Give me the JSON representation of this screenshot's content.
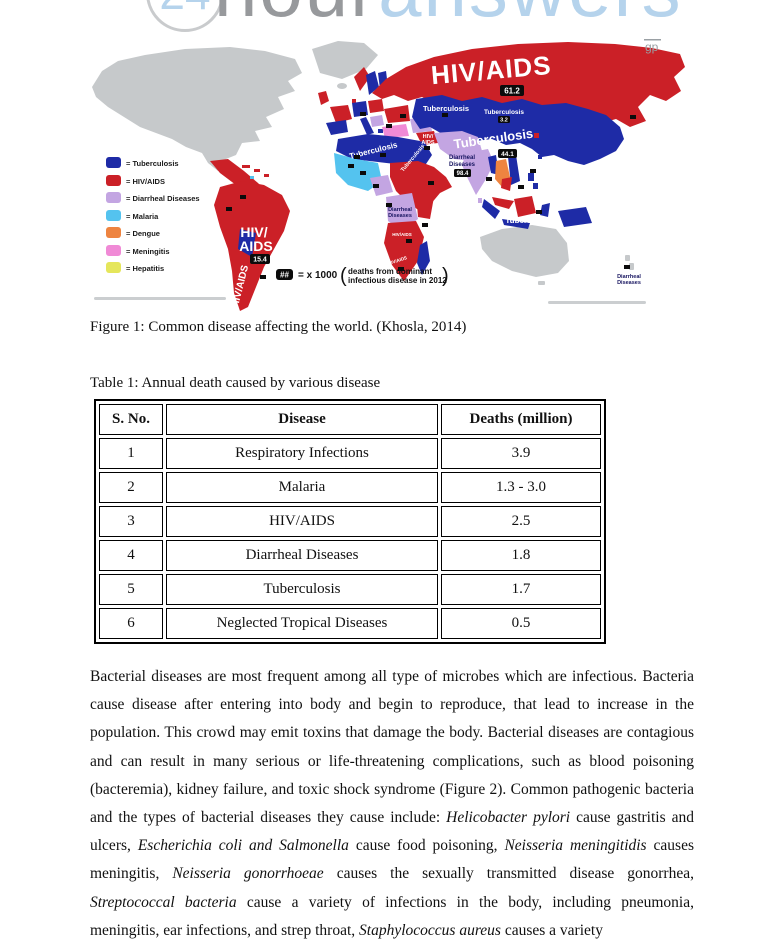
{
  "logo": {
    "number": "24",
    "hour": "hour",
    "answers": "answers"
  },
  "map": {
    "watermark": "gp",
    "legend": [
      {
        "label": "= Tuberculosis",
        "color": "#1e2ba6"
      },
      {
        "label": "= HIV/AIDS",
        "color": "#cb2027"
      },
      {
        "label": "= Diarrheal Diseases",
        "color": "#c3a5e2"
      },
      {
        "label": "= Malaria",
        "color": "#54c3ef"
      },
      {
        "label": "= Dengue",
        "color": "#ee8440"
      },
      {
        "label": "= Meningitis",
        "color": "#f08ad6"
      },
      {
        "label": "= Hepatitis",
        "color": "#e5e65b"
      }
    ],
    "labels": {
      "russia": "HIV/AIDS",
      "russia_badge": "61.2",
      "kazakhstan": "Tuberculosis",
      "mongolia": "Tuberculosis",
      "mongolia_badge": "3.2",
      "china": "Tuberculosis",
      "china_badge": "44.1",
      "north_africa": "Tuberculosis",
      "arabia": "Tuberculosis",
      "mideast_hiv_1": "HIV/",
      "mideast_hiv_2": "AIDS",
      "india_1": "Diarrheal",
      "india_2": "Diseases",
      "india_badge": "98.4",
      "congo_1": "Diarrheal",
      "congo_2": "Diseases",
      "south_america_1": "HIV/",
      "south_america_2": "AIDS",
      "south_america_badge": "15.4",
      "south_america_vertical": "HIV/AIDS",
      "africa_hiv_a": "HIV/AIDS",
      "africa_hiv_b": "HIV/AIDS",
      "indonesia": "Tuberculosis",
      "nz_1": "Diarrheal",
      "nz_2": "Diseases"
    },
    "annotation": {
      "badge": "##",
      "formula": "= x 1000",
      "line1": "deaths from dominant",
      "line2": "infectious disease in 2012"
    }
  },
  "figure_caption": "Figure 1: Common disease affecting the world. (Khosla, 2014)",
  "table_title": "Table 1: Annual death caused by various disease",
  "table": {
    "headers": [
      "S. No.",
      "Disease",
      "Deaths (million)"
    ],
    "rows": [
      [
        "1",
        "Respiratory Infections",
        "3.9"
      ],
      [
        "2",
        "Malaria",
        "1.3 - 3.0"
      ],
      [
        "3",
        "HIV/AIDS",
        "2.5"
      ],
      [
        "4",
        "Diarrheal Diseases",
        "1.8"
      ],
      [
        "5",
        "Tuberculosis",
        "1.7"
      ],
      [
        "6",
        "Neglected Tropical Diseases",
        "0.5"
      ]
    ]
  },
  "paragraph": {
    "segments": [
      {
        "text": "Bacterial diseases are most frequent among all type of microbes which are infectious. Bacteria cause disease after entering into body and begin to reproduce, that lead to increase in the population. This crowd may emit toxins that damage the body. Bacterial diseases are contagious and can result in many serious or life-threatening complications, such as blood poisoning (bacteremia), kidney failure, and toxic shock syndrome (Figure 2). Common pathogenic bacteria and the types of bacterial diseases they cause include: ",
        "italic": false
      },
      {
        "text": "Helicobacter pylori",
        "italic": true
      },
      {
        "text": " cause gastritis and ulcers, ",
        "italic": false
      },
      {
        "text": "Escherichia coli and Salmonella",
        "italic": true
      },
      {
        "text": " cause food poisoning, ",
        "italic": false
      },
      {
        "text": "Neisseria meningitidis",
        "italic": true
      },
      {
        "text": " causes meningitis, ",
        "italic": false
      },
      {
        "text": "Neisseria gonorrhoeae",
        "italic": true
      },
      {
        "text": " causes the sexually transmitted disease gonorrhea, ",
        "italic": false
      },
      {
        "text": "Streptococcal bacteria",
        "italic": true
      },
      {
        "text": " cause a variety of infections in the body, including pneumonia, meningitis, ear infections, and strep throat, ",
        "italic": false
      },
      {
        "text": "Staphylococcus aureus",
        "italic": true
      },
      {
        "text": " causes a variety",
        "italic": false
      }
    ]
  }
}
